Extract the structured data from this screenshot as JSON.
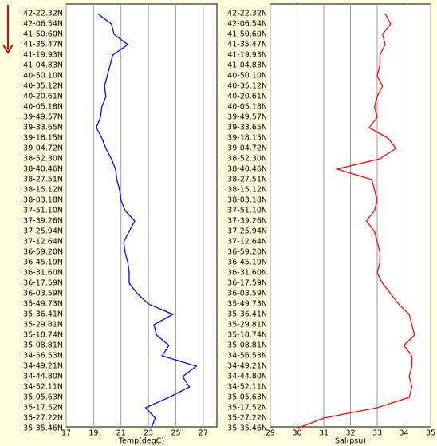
{
  "chart_data": [
    {
      "type": "line",
      "orientation": "horizontal",
      "xlabel": "Temp(degC)",
      "color": "#0000ff",
      "grid": true,
      "categories": [
        "42-22.32N",
        "42-06.54N",
        "41-50.60N",
        "41-35.47N",
        "41-19.93N",
        "41-04.83N",
        "40-50.10N",
        "40-35.12N",
        "40-20.61N",
        "40-05.18N",
        "39-49.57N",
        "39-33.65N",
        "39-18.15N",
        "39-04.72N",
        "38-52.30N",
        "38-40.46N",
        "38-27.51N",
        "38-15.12N",
        "38-03.18N",
        "37-51.10N",
        "37-39.26N",
        "37-25.94N",
        "37-12.64N",
        "36-59.20N",
        "36-45.19N",
        "36-31.60N",
        "36-17.59N",
        "36-03.59N",
        "35-49.73N",
        "35-36.41N",
        "35-29.81N",
        "35-18.74N",
        "35-08.81N",
        "34-56.53N",
        "34-49.21N",
        "34-44.80N",
        "34-52.11N",
        "35-05.63N",
        "35-17.52N",
        "35-27.22N",
        "35-35.46N"
      ],
      "values": [
        19.3,
        20.3,
        20.5,
        21.5,
        20.4,
        20.2,
        20.0,
        19.8,
        19.9,
        19.6,
        19.5,
        19.2,
        19.6,
        19.9,
        20.3,
        20.6,
        20.7,
        20.9,
        21.0,
        21.3,
        22.0,
        21.6,
        21.2,
        21.3,
        21.5,
        21.6,
        21.6,
        22.2,
        23.0,
        24.8,
        23.4,
        23.6,
        24.5,
        24.0,
        26.5,
        25.5,
        26.0,
        24.5,
        22.8,
        23.5,
        23.2
      ],
      "xlim": [
        17,
        28
      ],
      "xticks": [
        17,
        19,
        21,
        23,
        25,
        27
      ]
    },
    {
      "type": "line",
      "orientation": "horizontal",
      "xlabel": "Sal(psu)",
      "color": "#ff0000",
      "grid": true,
      "categories": [
        "42-22.32N",
        "42-06.54N",
        "41-50.60N",
        "41-35.47N",
        "41-19.93N",
        "41-04.83N",
        "40-50.10N",
        "40-35.12N",
        "40-20.61N",
        "40-05.18N",
        "39-49.57N",
        "39-33.65N",
        "39-18.15N",
        "39-04.72N",
        "38-52.30N",
        "38-40.46N",
        "38-27.51N",
        "38-15.12N",
        "38-03.18N",
        "37-51.10N",
        "37-39.26N",
        "37-25.94N",
        "37-12.64N",
        "36-59.20N",
        "36-45.19N",
        "36-31.60N",
        "36-17.59N",
        "36-03.59N",
        "35-49.73N",
        "35-36.41N",
        "35-29.81N",
        "35-18.74N",
        "35-08.81N",
        "34-56.53N",
        "34-49.21N",
        "34-44.80N",
        "34-52.11N",
        "35-05.63N",
        "35-17.52N",
        "35-27.22N",
        "35-35.46N"
      ],
      "values": [
        33.3,
        33.5,
        33.2,
        33.3,
        33.1,
        33.1,
        33.0,
        33.2,
        33.0,
        32.9,
        33.0,
        32.7,
        33.4,
        33.7,
        33.1,
        31.5,
        32.8,
        32.9,
        33.0,
        32.9,
        32.6,
        32.9,
        33.0,
        33.1,
        33.1,
        33.0,
        33.2,
        33.5,
        33.8,
        34.2,
        34.3,
        34.4,
        34.0,
        34.3,
        34.3,
        34.2,
        34.3,
        34.2,
        33.0,
        31.0,
        30.0
      ],
      "xlim": [
        29,
        35
      ],
      "xticks": [
        29,
        30,
        31,
        32,
        33,
        34,
        35
      ]
    }
  ]
}
